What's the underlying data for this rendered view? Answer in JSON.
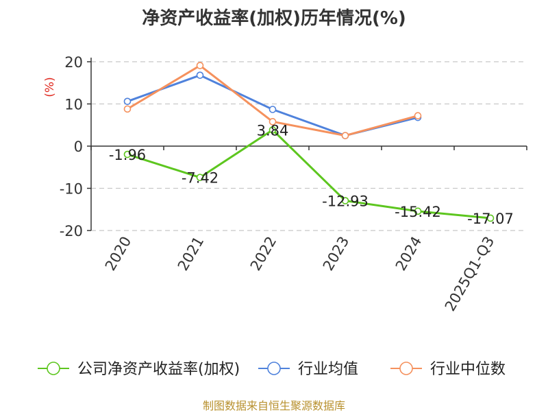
{
  "chart_data": {
    "type": "line",
    "title": "净资产收益率(加权)历年情况(%)",
    "ylabel": "(%)",
    "xlabel": "",
    "categories": [
      "2020",
      "2021",
      "2022",
      "2023",
      "2024",
      "2025Q1-Q3"
    ],
    "ylim": [
      -20,
      20
    ],
    "yticks": [
      20,
      10,
      0,
      -10,
      -20
    ],
    "grid": true,
    "legend_position": "bottom",
    "series": [
      {
        "name": "公司净资产收益率(加权)",
        "color": "#5dc61f",
        "values": [
          -1.96,
          -7.42,
          3.84,
          -12.93,
          -15.42,
          -17.07
        ],
        "labels": [
          "-1.96",
          "-7.42",
          "3.84",
          "-12.93",
          "-15.42",
          "-17.07"
        ]
      },
      {
        "name": "行业均值",
        "color": "#4f82dc",
        "values": [
          10.6,
          16.8,
          8.7,
          2.5,
          6.8,
          null
        ]
      },
      {
        "name": "行业中位数",
        "color": "#f5915d",
        "values": [
          8.8,
          19.1,
          5.8,
          2.5,
          7.2,
          null
        ]
      }
    ]
  },
  "footer": {
    "source": "制图数据来自恒生聚源数据库"
  }
}
